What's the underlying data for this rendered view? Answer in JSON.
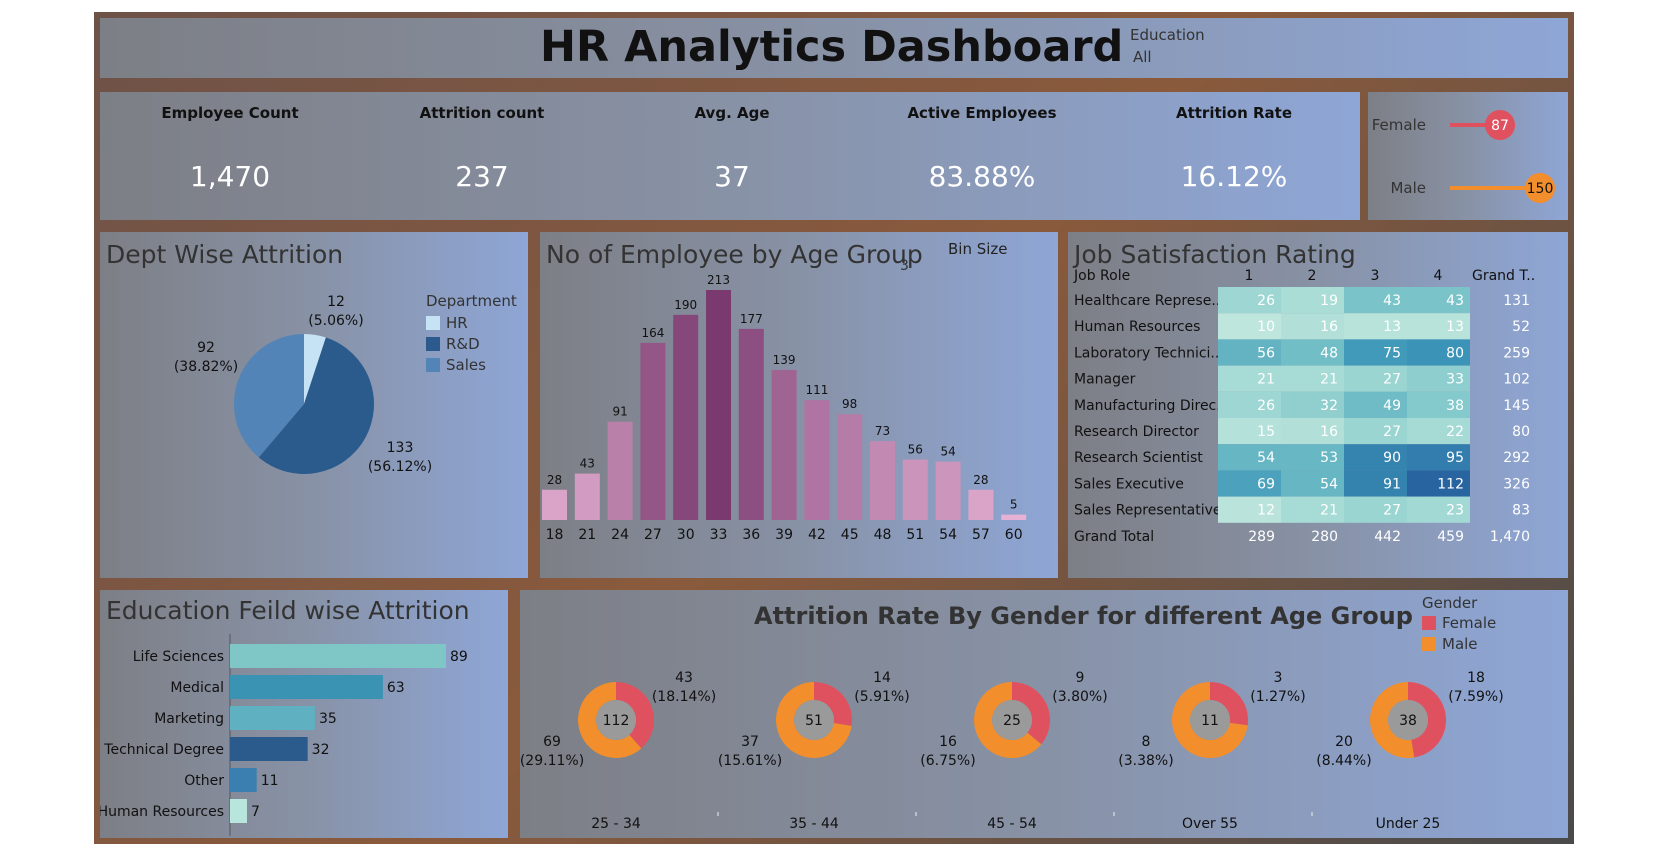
{
  "header": {
    "title": "HR Analytics Dashboard",
    "filter_label": "Education",
    "filter_value": "All"
  },
  "kpis": [
    {
      "label": "Employee Count",
      "value": "1,470"
    },
    {
      "label": "Attrition count",
      "value": "237"
    },
    {
      "label": "Avg. Age",
      "value": "37"
    },
    {
      "label": "Active Employees",
      "value": "83.88%"
    },
    {
      "label": "Attrition Rate",
      "value": "16.12%"
    }
  ],
  "gender_counts": [
    {
      "label": "Female",
      "value": 87,
      "color": "#e0515f"
    },
    {
      "label": "Male",
      "value": 150,
      "color": "#f28e2b"
    }
  ],
  "dept": {
    "title": "Dept Wise Attrition",
    "legend_title": "Department",
    "slices": [
      {
        "name": "HR",
        "value": 12,
        "label": "12",
        "pct": "(5.06%)",
        "color": "#c6e2f5"
      },
      {
        "name": "R&D",
        "value": 133,
        "label": "133",
        "pct": "(56.12%)",
        "color": "#2b5a8c"
      },
      {
        "name": "Sales",
        "value": 92,
        "label": "92",
        "pct": "(38.82%)",
        "color": "#5284b8"
      }
    ]
  },
  "age": {
    "title": "No of Employee by Age Group",
    "bin_label": "Bin Size",
    "bin_value": "3",
    "bins": [
      "18",
      "21",
      "24",
      "27",
      "30",
      "33",
      "36",
      "39",
      "42",
      "45",
      "48",
      "51",
      "54",
      "57",
      "60"
    ],
    "values": [
      28,
      43,
      91,
      164,
      190,
      213,
      177,
      139,
      111,
      98,
      73,
      56,
      54,
      28,
      5
    ]
  },
  "job": {
    "title": "Job Satisfaction Rating",
    "col_header": "Job Role",
    "cols": [
      "1",
      "2",
      "3",
      "4"
    ],
    "total_header": "Grand T..",
    "rows": [
      {
        "role": "Healthcare Represe..",
        "vals": [
          26,
          19,
          43,
          43
        ],
        "total": "131"
      },
      {
        "role": "Human Resources",
        "vals": [
          10,
          16,
          13,
          13
        ],
        "total": "52"
      },
      {
        "role": "Laboratory Technici..",
        "vals": [
          56,
          48,
          75,
          80
        ],
        "total": "259"
      },
      {
        "role": "Manager",
        "vals": [
          21,
          21,
          27,
          33
        ],
        "total": "102"
      },
      {
        "role": "Manufacturing Direc..",
        "vals": [
          26,
          32,
          49,
          38
        ],
        "total": "145"
      },
      {
        "role": "Research Director",
        "vals": [
          15,
          16,
          27,
          22
        ],
        "total": "80"
      },
      {
        "role": "Research Scientist",
        "vals": [
          54,
          53,
          90,
          95
        ],
        "total": "292"
      },
      {
        "role": "Sales Executive",
        "vals": [
          69,
          54,
          91,
          112
        ],
        "total": "326"
      },
      {
        "role": "Sales Representative",
        "vals": [
          12,
          21,
          27,
          23
        ],
        "total": "83"
      }
    ],
    "grand_label": "Grand Total",
    "grand": [
      "289",
      "280",
      "442",
      "459",
      "1,470"
    ]
  },
  "edu": {
    "title": "Education Feild wise Attrition",
    "categories": [
      "Life Sciences",
      "Medical",
      "Marketing",
      "Technical Degree",
      "Other",
      "Human Resources"
    ],
    "values": [
      89,
      63,
      35,
      32,
      11,
      7
    ],
    "colors": [
      "#7fc7c7",
      "#3a93b3",
      "#5fb0c0",
      "#2b5a8c",
      "#3a7fb0",
      "#b8e5dc"
    ]
  },
  "gender_age": {
    "title": "Attrition Rate By Gender for different Age Group",
    "legend_title": "Gender",
    "legend": [
      {
        "name": "Female",
        "color": "#e0515f"
      },
      {
        "name": "Male",
        "color": "#f28e2b"
      }
    ],
    "groups": [
      {
        "label": "25 - 34",
        "total": "112",
        "female": 43,
        "female_pct": "(18.14%)",
        "male": 69,
        "male_pct": "(29.11%)"
      },
      {
        "label": "35 - 44",
        "total": "51",
        "female": 14,
        "female_pct": "(5.91%)",
        "male": 37,
        "male_pct": "(15.61%)"
      },
      {
        "label": "45 - 54",
        "total": "25",
        "female": 9,
        "female_pct": "(3.80%)",
        "male": 16,
        "male_pct": "(6.75%)"
      },
      {
        "label": "Over 55",
        "total": "11",
        "female": 3,
        "female_pct": "(1.27%)",
        "male": 8,
        "male_pct": "(3.38%)"
      },
      {
        "label": "Under 25",
        "total": "38",
        "female": 18,
        "female_pct": "(7.59%)",
        "male": 20,
        "male_pct": "(8.44%)"
      }
    ]
  },
  "chart_data": [
    {
      "type": "pie",
      "title": "Dept Wise Attrition",
      "categories": [
        "HR",
        "R&D",
        "Sales"
      ],
      "values": [
        12,
        133,
        92
      ]
    },
    {
      "type": "bar",
      "title": "No of Employee by Age Group",
      "categories": [
        "18",
        "21",
        "24",
        "27",
        "30",
        "33",
        "36",
        "39",
        "42",
        "45",
        "48",
        "51",
        "54",
        "57",
        "60"
      ],
      "values": [
        28,
        43,
        91,
        164,
        190,
        213,
        177,
        139,
        111,
        98,
        73,
        56,
        54,
        28,
        5
      ]
    },
    {
      "type": "table",
      "title": "Job Satisfaction Rating",
      "columns": [
        "1",
        "2",
        "3",
        "4",
        "Grand T.."
      ]
    },
    {
      "type": "bar",
      "title": "Education Feild wise Attrition",
      "categories": [
        "Life Sciences",
        "Medical",
        "Marketing",
        "Technical Degree",
        "Other",
        "Human Resources"
      ],
      "values": [
        89,
        63,
        35,
        32,
        11,
        7
      ]
    },
    {
      "type": "pie",
      "title": "Attrition Rate By Gender for different Age Group",
      "categories": [
        "25 - 34",
        "35 - 44",
        "45 - 54",
        "Over 55",
        "Under 25"
      ],
      "series": [
        {
          "name": "Female",
          "values": [
            43,
            14,
            9,
            3,
            18
          ]
        },
        {
          "name": "Male",
          "values": [
            69,
            37,
            16,
            8,
            20
          ]
        }
      ]
    }
  ]
}
